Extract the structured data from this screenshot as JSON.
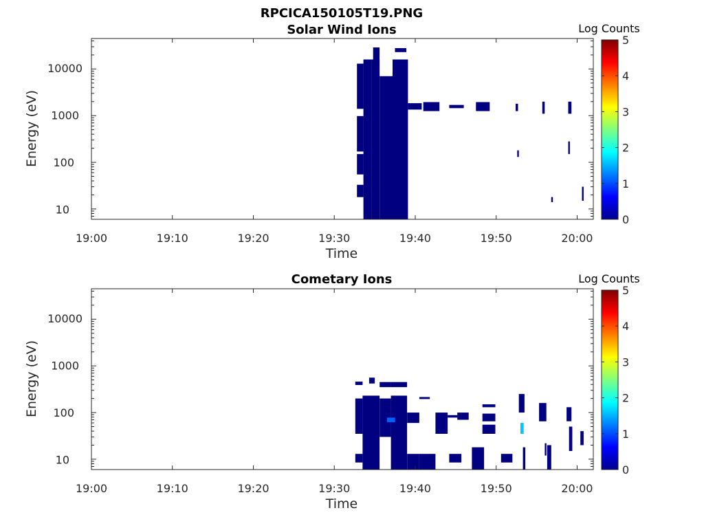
{
  "figure_title": "RPCICA150105T19.PNG",
  "chart_data": [
    {
      "type": "heatmap",
      "title": "Solar Wind Ions",
      "xlabel": "Time",
      "ylabel": "Energy (eV)",
      "x_ticks": [
        "19:00",
        "19:10",
        "19:20",
        "19:30",
        "19:40",
        "19:50",
        "20:00"
      ],
      "y_ticks": [
        "10",
        "100",
        "1000",
        "10000"
      ],
      "y_scale": "log",
      "x_range_minutes": [
        0,
        62
      ],
      "y_range_eV": [
        6,
        45000
      ],
      "colorbar": {
        "label": "Log Counts",
        "ticks": [
          "0",
          "1",
          "2",
          "3",
          "4",
          "5"
        ],
        "range": [
          0,
          5
        ],
        "colormap": "jet"
      },
      "blocks_note": "each block: [start minute after 19:00, end minute, low energy eV, high energy eV, log counts]",
      "blocks": [
        [
          32.8,
          33.6,
          1400,
          13000,
          0
        ],
        [
          32.8,
          33.6,
          170,
          980,
          0
        ],
        [
          32.8,
          33.6,
          55,
          150,
          0
        ],
        [
          32.8,
          33.6,
          18,
          33,
          0
        ],
        [
          33.6,
          34.6,
          6,
          16000,
          0
        ],
        [
          34.6,
          35.6,
          6,
          16000,
          0
        ],
        [
          34.8,
          35.6,
          16000,
          29000,
          0
        ],
        [
          35.6,
          37.2,
          6,
          7000,
          0
        ],
        [
          37.2,
          39.1,
          6,
          16000,
          0
        ],
        [
          37.5,
          38.9,
          23000,
          28000,
          0
        ],
        [
          39.1,
          40.8,
          1350,
          1850,
          0
        ],
        [
          41.0,
          43.0,
          1250,
          1950,
          0
        ],
        [
          44.2,
          46.0,
          1450,
          1700,
          0
        ],
        [
          47.5,
          49.2,
          1250,
          1950,
          0
        ],
        [
          52.4,
          52.7,
          1250,
          1800,
          0
        ],
        [
          52.6,
          52.8,
          130,
          180,
          0
        ],
        [
          55.7,
          56.0,
          1100,
          2000,
          0
        ],
        [
          56.8,
          57.0,
          14,
          18,
          0
        ],
        [
          58.9,
          59.3,
          1100,
          2000,
          0
        ],
        [
          58.9,
          59.1,
          150,
          280,
          0
        ],
        [
          60.6,
          60.8,
          15,
          30,
          0
        ]
      ]
    },
    {
      "type": "heatmap",
      "title": "Cometary Ions",
      "xlabel": "Time",
      "ylabel": "Energy (eV)",
      "x_ticks": [
        "19:00",
        "19:10",
        "19:20",
        "19:30",
        "19:40",
        "19:50",
        "20:00"
      ],
      "y_ticks": [
        "10",
        "100",
        "1000",
        "10000"
      ],
      "y_scale": "log",
      "x_range_minutes": [
        0,
        62
      ],
      "y_range_eV": [
        6,
        45000
      ],
      "colorbar": {
        "label": "Log Counts",
        "ticks": [
          "0",
          "1",
          "2",
          "3",
          "4",
          "5"
        ],
        "range": [
          0,
          5
        ],
        "colormap": "jet"
      },
      "blocks_note": "each block: [start minute after 19:00, end minute, low energy eV, high energy eV, log counts]",
      "blocks": [
        [
          32.6,
          33.5,
          35,
          200,
          0
        ],
        [
          32.6,
          33.5,
          8.5,
          13,
          0
        ],
        [
          32.6,
          33.5,
          390,
          460,
          0
        ],
        [
          33.5,
          35.6,
          6,
          230,
          0
        ],
        [
          34.3,
          35.0,
          420,
          560,
          0
        ],
        [
          35.6,
          37.0,
          30,
          200,
          0
        ],
        [
          35.6,
          37.0,
          350,
          450,
          0
        ],
        [
          37.0,
          39.0,
          6,
          230,
          0
        ],
        [
          37.0,
          39.0,
          350,
          450,
          0
        ],
        [
          36.5,
          37.5,
          62,
          78,
          1.1
        ],
        [
          39.0,
          40.5,
          60,
          100,
          0
        ],
        [
          39.0,
          40.5,
          6,
          13,
          0
        ],
        [
          40.5,
          42.5,
          6,
          13,
          0
        ],
        [
          40.5,
          41.8,
          195,
          215,
          0
        ],
        [
          42.5,
          44.0,
          35,
          100,
          0
        ],
        [
          44.0,
          46.2,
          78,
          88,
          0
        ],
        [
          45.2,
          46.6,
          70,
          100,
          0
        ],
        [
          44.2,
          45.7,
          8.5,
          13,
          0
        ],
        [
          47.0,
          48.5,
          6,
          18,
          0
        ],
        [
          48.3,
          49.9,
          65,
          95,
          0
        ],
        [
          48.3,
          49.9,
          35,
          55,
          0
        ],
        [
          48.3,
          49.9,
          130,
          150,
          0
        ],
        [
          50.6,
          52.0,
          8.5,
          13,
          0
        ],
        [
          52.8,
          53.5,
          100,
          250,
          0
        ],
        [
          53.3,
          53.6,
          6,
          18,
          0
        ],
        [
          53.0,
          53.4,
          35,
          60,
          1.6
        ],
        [
          55.3,
          56.2,
          65,
          160,
          0
        ],
        [
          56.0,
          56.2,
          12,
          22,
          0
        ],
        [
          56.3,
          56.8,
          6,
          20,
          0
        ],
        [
          58.7,
          59.3,
          65,
          130,
          0
        ],
        [
          59.0,
          59.4,
          15,
          50,
          0
        ],
        [
          60.4,
          60.8,
          20,
          40,
          0
        ]
      ]
    }
  ]
}
